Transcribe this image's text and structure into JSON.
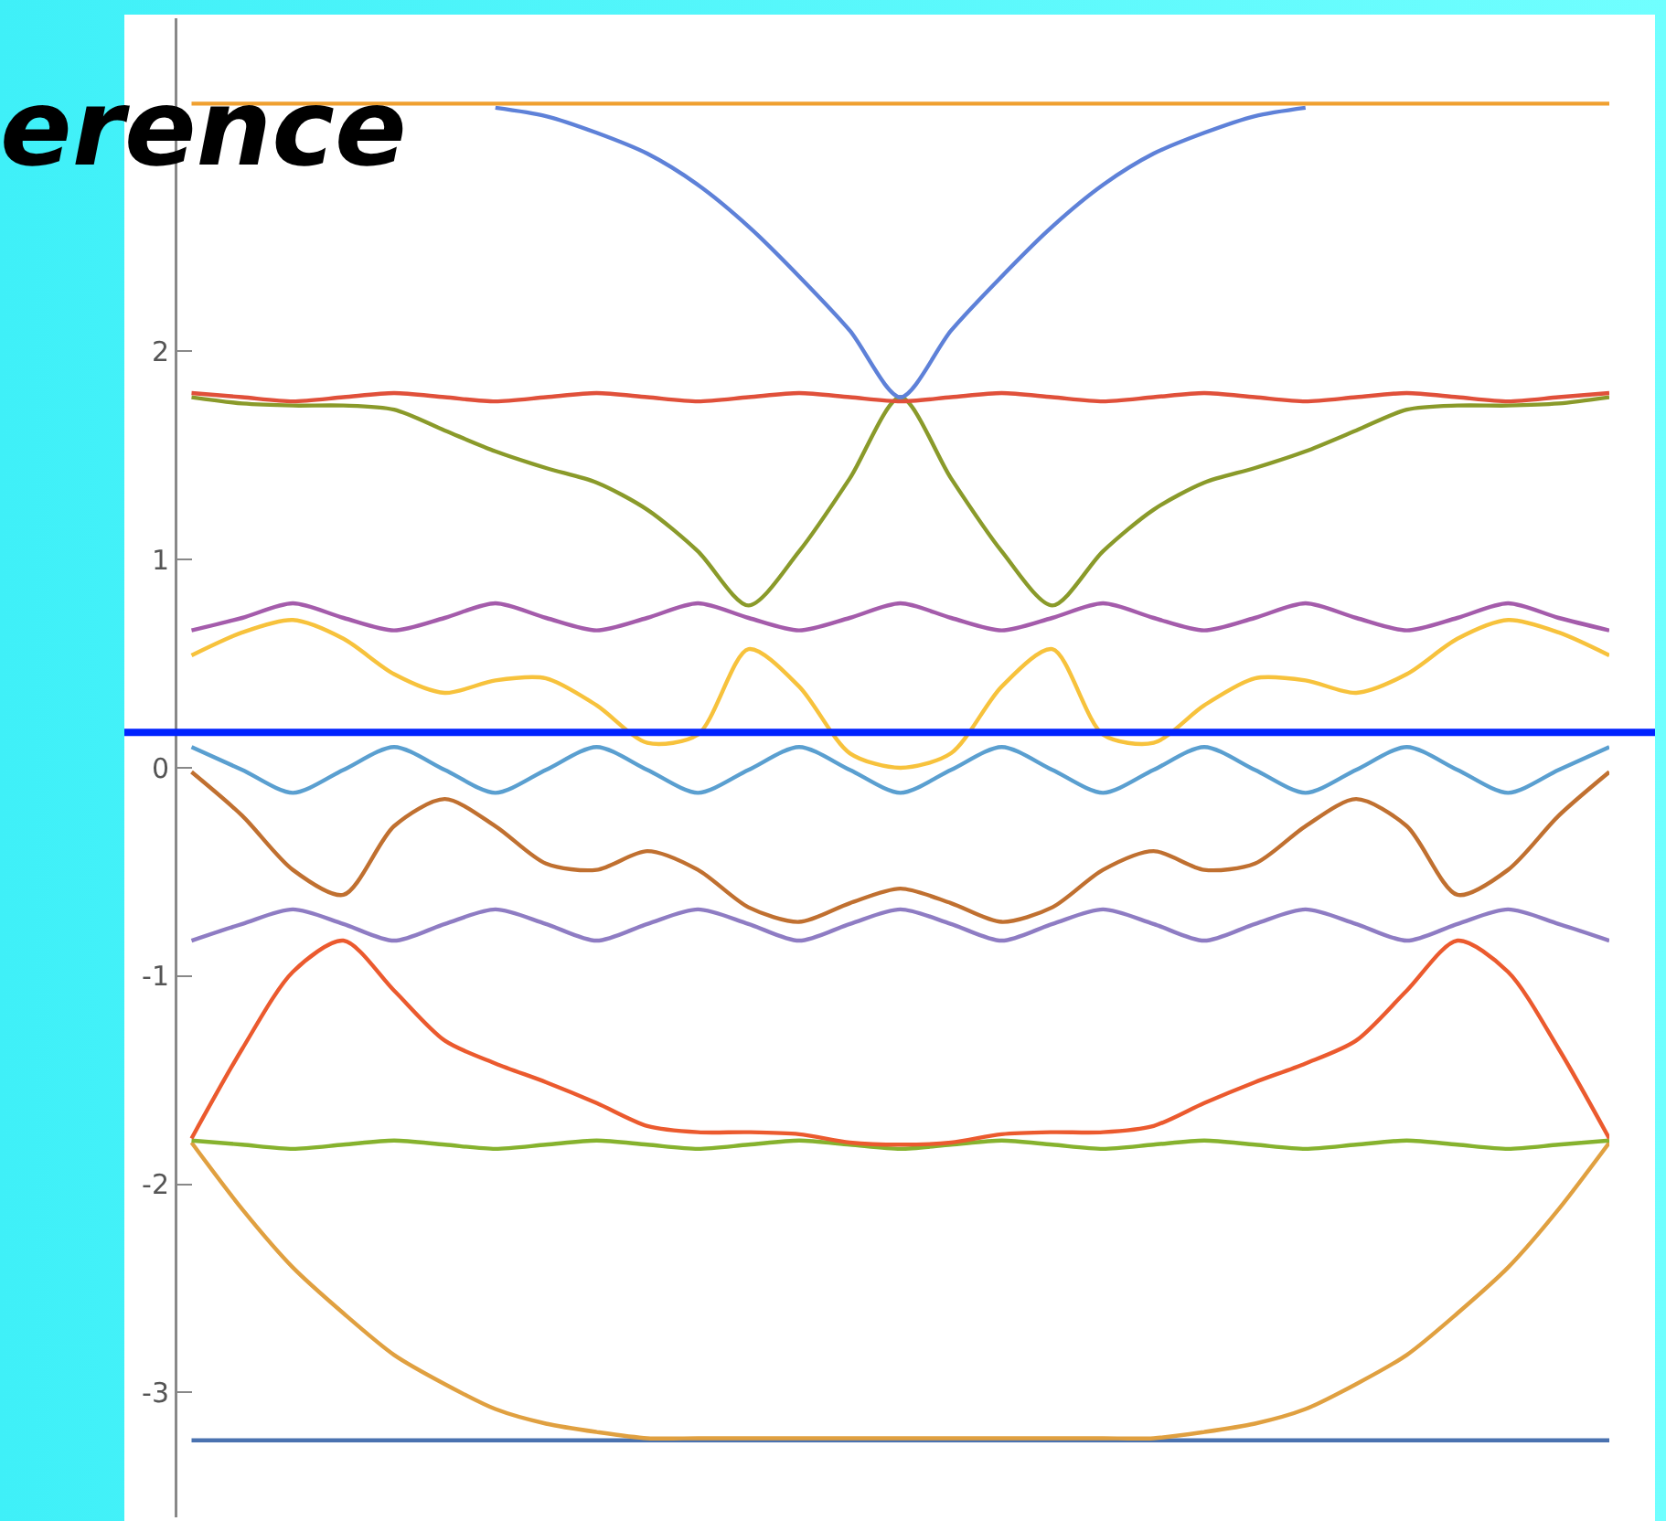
{
  "chart_data": {
    "type": "line",
    "title": "erence",
    "categories": [
      null,
      null,
      null,
      null,
      null,
      null,
      null,
      null,
      null,
      null,
      null,
      null,
      null,
      null,
      null,
      null,
      null,
      null,
      null,
      null,
      null,
      null,
      null,
      null,
      null,
      null,
      null,
      null,
      null
    ],
    "series": [
      {
        "color": "#f0a030",
        "values": [
          3.19,
          3.19,
          3.19,
          3.19,
          3.19,
          3.19,
          3.19,
          3.19,
          3.19,
          3.19,
          3.19,
          3.19,
          3.19,
          3.19,
          3.19,
          3.19,
          3.19,
          3.19,
          3.19,
          3.19,
          3.19,
          3.19,
          3.19,
          3.19,
          3.19,
          3.19,
          3.19,
          3.19,
          3.19
        ]
      },
      {
        "color": "#5e81d8",
        "values": [
          null,
          null,
          null,
          null,
          null,
          null,
          3.17,
          3.13,
          3.05,
          2.95,
          2.8,
          2.6,
          2.36,
          2.1,
          1.78,
          2.1,
          2.36,
          2.6,
          2.8,
          2.95,
          3.05,
          3.13,
          3.17,
          null,
          null,
          null,
          null,
          null,
          null
        ]
      },
      {
        "color": "#e0503a",
        "values": [
          1.8,
          1.78,
          1.76,
          1.78,
          1.8,
          1.78,
          1.76,
          1.78,
          1.8,
          1.78,
          1.76,
          1.78,
          1.8,
          1.78,
          1.76,
          1.78,
          1.8,
          1.78,
          1.76,
          1.78,
          1.8,
          1.78,
          1.76,
          1.78,
          1.8,
          1.78,
          1.76,
          1.78,
          1.8
        ]
      },
      {
        "color": "#8a9a2a",
        "values": [
          1.78,
          1.75,
          1.74,
          1.74,
          1.72,
          1.62,
          1.52,
          1.44,
          1.37,
          1.24,
          1.04,
          0.78,
          1.04,
          1.39,
          1.78,
          1.39,
          1.04,
          0.78,
          1.04,
          1.24,
          1.37,
          1.44,
          1.52,
          1.62,
          1.72,
          1.74,
          1.74,
          1.75,
          1.78
        ]
      },
      {
        "color": "#a45cab",
        "values": [
          0.66,
          0.72,
          0.79,
          0.72,
          0.66,
          0.72,
          0.79,
          0.72,
          0.66,
          0.72,
          0.79,
          0.72,
          0.66,
          0.72,
          0.79,
          0.72,
          0.66,
          0.72,
          0.79,
          0.72,
          0.66,
          0.72,
          0.79,
          0.72,
          0.66,
          0.72,
          0.79,
          0.72,
          0.66
        ]
      },
      {
        "color": "#f7c23c",
        "values": [
          0.54,
          0.65,
          0.71,
          0.62,
          0.45,
          0.36,
          0.42,
          0.43,
          0.3,
          0.12,
          0.16,
          0.57,
          0.39,
          0.07,
          0.0,
          0.07,
          0.39,
          0.57,
          0.16,
          0.12,
          0.3,
          0.43,
          0.42,
          0.36,
          0.45,
          0.62,
          0.71,
          0.65,
          0.54
        ]
      },
      {
        "color": "#5a9fd0",
        "values": [
          0.1,
          -0.01,
          -0.12,
          -0.01,
          0.1,
          -0.01,
          -0.12,
          -0.01,
          0.1,
          -0.01,
          -0.12,
          -0.01,
          0.1,
          -0.01,
          -0.12,
          -0.01,
          0.1,
          -0.01,
          -0.12,
          -0.01,
          0.1,
          -0.01,
          -0.12,
          -0.01,
          0.1,
          -0.01,
          -0.12,
          -0.01,
          0.1
        ]
      },
      {
        "color": "#c07030",
        "values": [
          -0.02,
          -0.23,
          -0.49,
          -0.61,
          -0.28,
          -0.15,
          -0.28,
          -0.46,
          -0.49,
          -0.4,
          -0.49,
          -0.67,
          -0.74,
          -0.65,
          -0.58,
          -0.65,
          -0.74,
          -0.67,
          -0.49,
          -0.4,
          -0.49,
          -0.46,
          -0.28,
          -0.15,
          -0.28,
          -0.61,
          -0.49,
          -0.23,
          -0.02
        ]
      },
      {
        "color": "#8e7cc3",
        "values": [
          -0.83,
          -0.75,
          -0.68,
          -0.75,
          -0.83,
          -0.75,
          -0.68,
          -0.75,
          -0.83,
          -0.75,
          -0.68,
          -0.75,
          -0.83,
          -0.75,
          -0.68,
          -0.75,
          -0.83,
          -0.75,
          -0.68,
          -0.75,
          -0.83,
          -0.75,
          -0.68,
          -0.75,
          -0.83,
          -0.75,
          -0.68,
          -0.75,
          -0.83
        ]
      },
      {
        "color": "#eb5a2e",
        "values": [
          -1.78,
          -1.35,
          -0.98,
          -0.83,
          -1.07,
          -1.31,
          -1.42,
          -1.51,
          -1.61,
          -1.72,
          -1.75,
          -1.75,
          -1.76,
          -1.8,
          -1.81,
          -1.8,
          -1.76,
          -1.75,
          -1.75,
          -1.72,
          -1.61,
          -1.51,
          -1.42,
          -1.31,
          -1.07,
          -0.83,
          -0.98,
          -1.35,
          -1.78
        ]
      },
      {
        "color": "#86b22e",
        "values": [
          -1.79,
          -1.81,
          -1.83,
          -1.81,
          -1.79,
          -1.81,
          -1.83,
          -1.81,
          -1.79,
          -1.81,
          -1.83,
          -1.81,
          -1.79,
          -1.81,
          -1.83,
          -1.81,
          -1.79,
          -1.81,
          -1.83,
          -1.81,
          -1.79,
          -1.81,
          -1.83,
          -1.81,
          -1.79,
          -1.81,
          -1.83,
          -1.81,
          -1.79
        ]
      },
      {
        "color": "#e0a040",
        "values": [
          -1.8,
          -2.12,
          -2.4,
          -2.62,
          -2.82,
          -2.96,
          -3.08,
          -3.15,
          -3.19,
          -3.22,
          -3.22,
          -3.22,
          -3.22,
          -3.22,
          -3.22,
          -3.22,
          -3.22,
          -3.22,
          -3.22,
          -3.22,
          -3.19,
          -3.15,
          -3.08,
          -2.96,
          -2.82,
          -2.62,
          -2.4,
          -2.12,
          -1.8
        ]
      },
      {
        "color": "#4a72b0",
        "values": [
          -3.23,
          -3.23,
          -3.23,
          -3.23,
          -3.23,
          -3.23,
          -3.23,
          -3.23,
          -3.23,
          -3.23,
          -3.23,
          -3.23,
          -3.23,
          -3.23,
          -3.23,
          -3.23,
          -3.23,
          -3.23,
          -3.23,
          -3.23,
          -3.23,
          -3.23,
          -3.23,
          -3.23,
          -3.23,
          -3.23,
          -3.23,
          -3.23,
          -3.23
        ]
      }
    ],
    "ylim": [
      -3.6,
      3.6
    ],
    "yticks": [
      -3,
      -2,
      -1,
      0,
      1,
      2
    ],
    "grid": false,
    "marker": "none",
    "line_style": "solid",
    "ref_lines": [
      {
        "axis": "y",
        "value": 0.17,
        "color": "#0022ff"
      }
    ]
  }
}
